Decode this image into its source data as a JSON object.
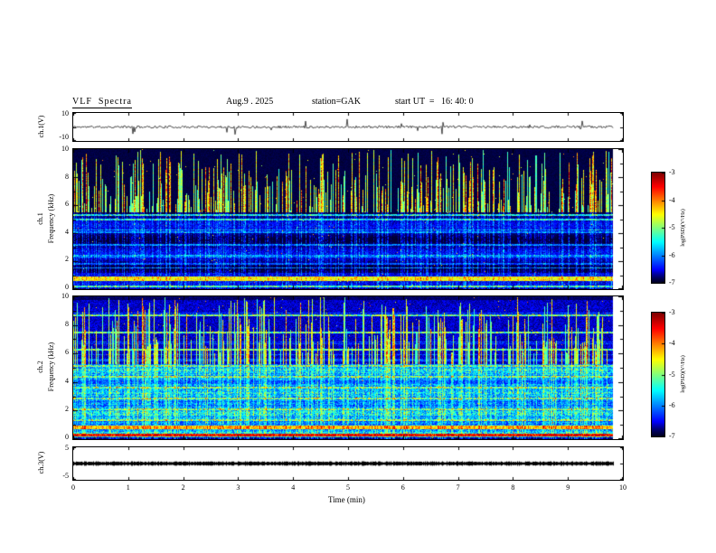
{
  "header": {
    "title": "VLF  Spectra",
    "date": "Aug.9 . 2025",
    "station": "station=GAK",
    "start_ut": "start UT  =   16: 40: 0"
  },
  "xaxis": {
    "label": "Time  (min)",
    "ticks": [
      "0",
      "1",
      "2",
      "3",
      "4",
      "5",
      "6",
      "7",
      "8",
      "9",
      "10"
    ],
    "range_min": [
      0,
      10
    ]
  },
  "colorbar": {
    "label": "log(PSD)(V²/Hz)",
    "ticks": [
      "-3",
      "-4",
      "-5",
      "-6",
      "-7"
    ],
    "range": [
      -3,
      -7
    ]
  },
  "panels": {
    "ch1_wave": {
      "axis_label": "ch.1(V)",
      "yticks": [
        "10",
        "-10"
      ],
      "ylim": [
        -10,
        10
      ]
    },
    "ch1_spec": {
      "channel": "ch.1",
      "axis_label": "Frequency  (kHz)",
      "yticks": [
        "10",
        "8",
        "6",
        "4",
        "2",
        "0"
      ],
      "ylim": [
        0,
        10
      ]
    },
    "ch2_spec": {
      "channel": "ch.2",
      "axis_label": "Frequency  (kHz)",
      "yticks": [
        "10",
        "8",
        "6",
        "4",
        "2",
        "0"
      ],
      "ylim": [
        0,
        10
      ]
    },
    "ch3_wave": {
      "axis_label": "ch.3(V)",
      "yticks": [
        "5",
        "-5"
      ],
      "ylim": [
        -5,
        5
      ]
    }
  },
  "chart_data": [
    {
      "type": "line",
      "panel": "ch.1 voltage waveform",
      "xlabel": "Time (min)",
      "xlim": [
        0,
        10
      ],
      "ylabel": "ch.1(V)",
      "ylim": [
        -10,
        10
      ],
      "description": "Broadband noise trace centered on 0 V, typical amplitude about ±1 V with intermittent impulsive spikes reaching roughly ±7 V, continuous over the 0–9.85 min record.",
      "seed": 11
    },
    {
      "type": "heatmap",
      "panel": "ch.1 spectrogram",
      "xlim": [
        0,
        10
      ],
      "ylim": [
        0,
        10
      ],
      "ylabel": "Frequency (kHz)",
      "value_label": "log(PSD)(V²/Hz)",
      "value_range": [
        -7,
        -3
      ],
      "colormap": "jet (black at -7 through blue, green, yellow to red at -3)",
      "features": [
        "very dark (near -7) background below ~5.5 kHz with faint blue speckle and thin cyan horizontal lines near 5 kHz",
        "continuous bright green-yellow band near 0.7-0.9 kHz",
        "dense vertical broadband impulsive streaks (green/yellow) most visible above 5 kHz, many reaching 10 kHz",
        "data ends near 9.85 min leaving a white gap before the right frame"
      ],
      "seed": 21
    },
    {
      "type": "heatmap",
      "panel": "ch.2 spectrogram",
      "xlim": [
        0,
        10
      ],
      "ylim": [
        0,
        10
      ],
      "ylabel": "Frequency (kHz)",
      "value_label": "log(PSD)(V²/Hz)",
      "value_range": [
        -7,
        -3
      ],
      "colormap": "jet (black at -7 through blue, green, yellow to red at -3)",
      "features": [
        "blue speckle background (~-6) with strong horizontal banding",
        "ladder of cyan horizontal lines between ~1 and 9 kHz",
        "bright yellow-green horizontal line near 0.9 kHz",
        "red-orange band near 0.3 kHz at the bottom edge",
        "frequent green vertical impulsive streaks spanning the full band"
      ],
      "seed": 33
    },
    {
      "type": "line",
      "panel": "ch.3 voltage waveform",
      "xlabel": "Time (min)",
      "xlim": [
        0,
        10
      ],
      "ylabel": "ch.3(V)",
      "ylim": [
        -5,
        5
      ],
      "description": "Essentially constant 0 V: a thick flat black trace for the whole record (no signal on channel 3).",
      "seed": 44
    }
  ]
}
